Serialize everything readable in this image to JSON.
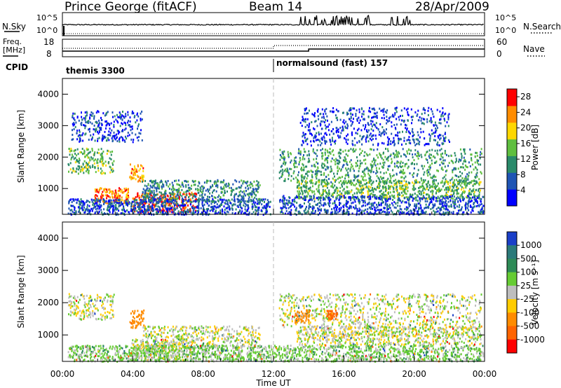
{
  "header": {
    "station": "Prince George (fitACF)",
    "beam": "Beam 14",
    "date": "28/Apr/2009"
  },
  "top_panels": {
    "nsky_label": "N.Sky",
    "nsearch_label": "N.Search",
    "nsky_ticks": [
      "10^5",
      "10^0"
    ],
    "nsearch_ticks": [
      "10^5",
      "10^0"
    ],
    "freq_label_line1": "Freq.",
    "freq_label_line2": "[MHz]",
    "freq_ticks": [
      "18",
      "8"
    ],
    "nave_label": "Nave",
    "nave_ticks": [
      "60",
      "0"
    ],
    "cpid_label": "CPID",
    "modes": [
      {
        "name": "themis 3300",
        "start_hour": 0
      },
      {
        "name": "normalsound (fast) 157",
        "start_hour": 12
      }
    ]
  },
  "chart_data": [
    {
      "type": "heatmap",
      "panel": "power",
      "x_label": "",
      "y_label": "Slant Range [km]",
      "xlim": [
        0,
        24
      ],
      "ylim": [
        180,
        4500
      ],
      "y_ticks": [
        "1000",
        "2000",
        "3000",
        "4000"
      ],
      "colorbar_label": "Power [dB]",
      "colorbar_ticks": [
        "4",
        "8",
        "12",
        "16",
        "20",
        "24",
        "28"
      ],
      "colorbar_range": [
        0,
        30
      ],
      "colorbar_colors": [
        "#0000ff",
        "#1f55b4",
        "#2a8a6a",
        "#5fbf3f",
        "#ffd700",
        "#ff8c00",
        "#ff0000"
      ],
      "regions": [
        {
          "t0": 0.3,
          "t1": 2.9,
          "r0": 1500,
          "r1": 2300,
          "value": 14
        },
        {
          "t0": 0.5,
          "t1": 4.5,
          "r0": 2500,
          "r1": 3500,
          "value": 5
        },
        {
          "t0": 1.8,
          "t1": 3.8,
          "r0": 550,
          "r1": 1050,
          "value": 24
        },
        {
          "t0": 3.8,
          "t1": 4.6,
          "r0": 1250,
          "r1": 1800,
          "value": 22
        },
        {
          "t0": 3.9,
          "t1": 7.6,
          "r0": 250,
          "r1": 900,
          "value": 27
        },
        {
          "t0": 4.5,
          "t1": 11.2,
          "r0": 600,
          "r1": 1300,
          "value": 10
        },
        {
          "t0": 0.3,
          "t1": 11.8,
          "r0": 200,
          "r1": 700,
          "value": 6
        },
        {
          "t0": 12.3,
          "t1": 23.8,
          "r0": 1200,
          "r1": 2300,
          "value": 12
        },
        {
          "t0": 13.3,
          "t1": 23.8,
          "r0": 700,
          "r1": 1300,
          "value": 14
        },
        {
          "t0": 12.3,
          "t1": 23.9,
          "r0": 200,
          "r1": 800,
          "value": 6
        },
        {
          "t0": 13.5,
          "t1": 22.0,
          "r0": 2400,
          "r1": 3600,
          "value": 5
        }
      ]
    },
    {
      "type": "heatmap",
      "panel": "velocity",
      "x_label": "Time UT",
      "y_label": "Slant Range [km]",
      "xlim": [
        0,
        24
      ],
      "ylim": [
        180,
        4500
      ],
      "x_ticks": [
        "00:00",
        "04:00",
        "08:00",
        "12:00",
        "16:00",
        "20:00",
        "00:00"
      ],
      "y_ticks": [
        "1000",
        "2000",
        "3000",
        "4000"
      ],
      "colorbar_label": "Velocity [m s^-1]",
      "colorbar_ticks": [
        "1000",
        "500",
        "100",
        "25",
        "-25",
        "-100",
        "-500",
        "-1000"
      ],
      "colorbar_colors": [
        "#1a3fc8",
        "#2b7a7a",
        "#2e8b57",
        "#66cc33",
        "#bebebe",
        "#ffcc00",
        "#ff8c00",
        "#ff6400",
        "#ff0000"
      ],
      "regions": [
        {
          "t0": 0.3,
          "t1": 2.9,
          "r0": 1500,
          "r1": 2300,
          "value": 0
        },
        {
          "t0": 3.8,
          "t1": 4.6,
          "r0": 1250,
          "r1": 1800,
          "value": -200
        },
        {
          "t0": 3.9,
          "t1": 7.6,
          "r0": 250,
          "r1": 900,
          "value": 0
        },
        {
          "t0": 4.5,
          "t1": 11.2,
          "r0": 600,
          "r1": 1300,
          "value": 0
        },
        {
          "t0": 12.3,
          "t1": 23.8,
          "r0": 1200,
          "r1": 2300,
          "value": 0
        },
        {
          "t0": 13.2,
          "t1": 14.0,
          "r0": 1400,
          "r1": 1800,
          "value": -300
        },
        {
          "t0": 15.0,
          "t1": 15.6,
          "r0": 1500,
          "r1": 1800,
          "value": -600
        },
        {
          "t0": 13.3,
          "t1": 23.8,
          "r0": 700,
          "r1": 1300,
          "value": 0
        },
        {
          "t0": 0.3,
          "t1": 23.9,
          "r0": 200,
          "r1": 700,
          "value": 50
        }
      ]
    }
  ]
}
